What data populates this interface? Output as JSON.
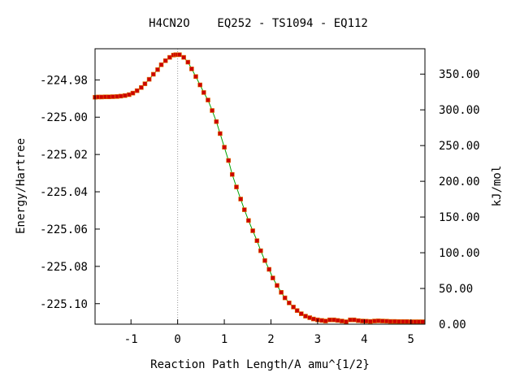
{
  "chart_data": {
    "type": "line",
    "title": "H4CN2O    EQ252 - TS1094 - EQ112",
    "xlabel": "Reaction Path Length/A amu^{1/2}",
    "ylabel": "Energy/Hartree",
    "y2label": "kJ/mol",
    "xlim": [
      -1.77,
      5.3
    ],
    "ylim": [
      -225.111,
      -224.9633
    ],
    "xticks": [
      {
        "value": -1,
        "label": "-1"
      },
      {
        "value": 0,
        "label": "0"
      },
      {
        "value": 1,
        "label": "1"
      },
      {
        "value": 2,
        "label": "2"
      },
      {
        "value": 3,
        "label": "3"
      },
      {
        "value": 4,
        "label": "4"
      },
      {
        "value": 5,
        "label": "5"
      }
    ],
    "yticks": [
      {
        "value": -224.98,
        "label": "-224.98"
      },
      {
        "value": -225.0,
        "label": "-225.00"
      },
      {
        "value": -225.02,
        "label": "-225.02"
      },
      {
        "value": -225.04,
        "label": "-225.04"
      },
      {
        "value": -225.06,
        "label": "-225.06"
      },
      {
        "value": -225.08,
        "label": "-225.08"
      },
      {
        "value": -225.1,
        "label": "-225.10"
      }
    ],
    "y2ticks": [
      {
        "value": 0,
        "label": "0.00"
      },
      {
        "value": 50,
        "label": "50.00"
      },
      {
        "value": 100,
        "label": "100.00"
      },
      {
        "value": 150,
        "label": "150.00"
      },
      {
        "value": 200,
        "label": "200.00"
      },
      {
        "value": 250,
        "label": "250.00"
      },
      {
        "value": 300,
        "label": "300.00"
      },
      {
        "value": 350,
        "label": "350.00"
      }
    ],
    "y2lim": [
      0,
      385.5
    ],
    "ts_x": 0,
    "line_color": "#00a000",
    "marker_color": "#cc0000",
    "grid": false,
    "series": [
      {
        "x": [
          -1.77,
          -1.7,
          -1.63,
          -1.55,
          -1.47,
          -1.39,
          -1.3,
          -1.22,
          -1.13,
          -1.04,
          -0.96,
          -0.87,
          -0.78,
          -0.7,
          -0.61,
          -0.52,
          -0.43,
          -0.35,
          -0.26,
          -0.17,
          -0.09,
          -0.04,
          0,
          0.04,
          0.13,
          0.22,
          0.3,
          0.39,
          0.48,
          0.56,
          0.65,
          0.74,
          0.83,
          0.91,
          1,
          1.09,
          1.17,
          1.26,
          1.35,
          1.43,
          1.52,
          1.61,
          1.7,
          1.78,
          1.87,
          1.96,
          2.04,
          2.13,
          2.22,
          2.3,
          2.39,
          2.48,
          2.56,
          2.65,
          2.74,
          2.83,
          2.91,
          3,
          3.09,
          3.17,
          3.26,
          3.35,
          3.43,
          3.52,
          3.61,
          3.7,
          3.78,
          3.87,
          3.96,
          4.04,
          4.13,
          4.22,
          4.3,
          4.39,
          4.48,
          4.56,
          4.65,
          4.74,
          4.83,
          4.91,
          5,
          5.09,
          5.17,
          5.25
        ],
        "y": [
          -224.9893,
          -224.9892,
          -224.9892,
          -224.9891,
          -224.9891,
          -224.989,
          -224.9889,
          -224.9887,
          -224.9884,
          -224.9879,
          -224.9871,
          -224.9858,
          -224.9841,
          -224.9821,
          -224.9797,
          -224.977,
          -224.9745,
          -224.9719,
          -224.9697,
          -224.9679,
          -224.9667,
          -224.9665,
          -224.9665,
          -224.9665,
          -224.9679,
          -224.9705,
          -224.9741,
          -224.9782,
          -224.9827,
          -224.9868,
          -224.9908,
          -224.9964,
          -225.0024,
          -225.0088,
          -225.0161,
          -225.0232,
          -225.0307,
          -225.0374,
          -225.0439,
          -225.0496,
          -225.0554,
          -225.0609,
          -225.0662,
          -225.0716,
          -225.0769,
          -225.0816,
          -225.0862,
          -225.0902,
          -225.0939,
          -225.0969,
          -225.0996,
          -225.1018,
          -225.1037,
          -225.1054,
          -225.1067,
          -225.1075,
          -225.1082,
          -225.1087,
          -225.109,
          -225.1093,
          -225.1087,
          -225.1087,
          -225.109,
          -225.1093,
          -225.1097,
          -225.1087,
          -225.1087,
          -225.1091,
          -225.1093,
          -225.1094,
          -225.1095,
          -225.1093,
          -225.1092,
          -225.1093,
          -225.1094,
          -225.1095,
          -225.1095,
          -225.1096,
          -225.1096,
          -225.1096,
          -225.1097,
          -225.1097,
          -225.1097,
          -225.1097
        ]
      }
    ]
  }
}
